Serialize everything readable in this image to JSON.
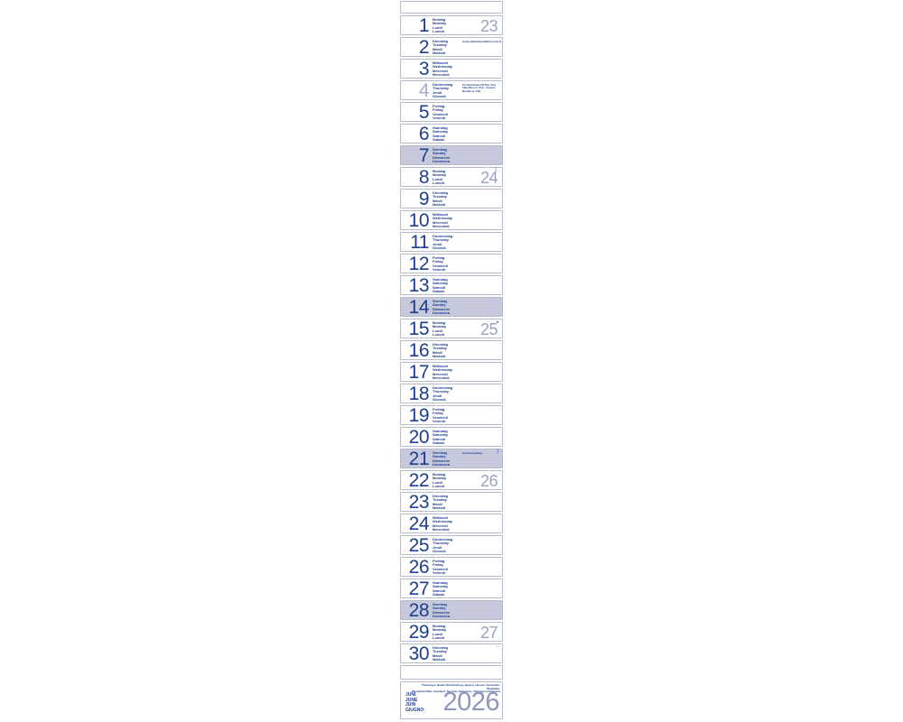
{
  "calendar": {
    "colors": {
      "navy": "#1d3e8e",
      "light_week_number": "#9aa2c4",
      "year_color": "#8e96bb",
      "sunday_background": "#c6c9dc",
      "border": "#b4bbd2",
      "muted_day_number": "#a6adca",
      "background": "#ffffff"
    },
    "weekday_names": {
      "mon": [
        "Montag",
        "Monday",
        "Lundi",
        "Lunedì"
      ],
      "tue": [
        "Dienstag",
        "Tuesday",
        "Mardi",
        "Martedì"
      ],
      "wed": [
        "Mittwoch",
        "Wednesday",
        "Mercredi",
        "Mercoledì"
      ],
      "thu": [
        "Donnerstag",
        "Thursday",
        "Jeudi",
        "Giovedì"
      ],
      "fri": [
        "Freitag",
        "Friday",
        "Vendredi",
        "Venerdì"
      ],
      "sat": [
        "Samstag",
        "Saturday",
        "Samedi",
        "Sabato"
      ],
      "sun": [
        "Sonntag",
        "Sunday",
        "Dimanche",
        "Domenica"
      ]
    },
    "days": [
      {
        "day": "1",
        "weekday": "mon",
        "week": "23"
      },
      {
        "day": "2",
        "weekday": "tue",
        "annotation": [
          "Festa della Repubblica (solo I)"
        ]
      },
      {
        "day": "3",
        "weekday": "wed"
      },
      {
        "day": "4",
        "weekday": "thu",
        "muted": true,
        "annotation": [
          "Fronleichnam (D*/A/t. CH)",
          "Fête-Dieu (t. CH) · Corpus Domini (t. CH)"
        ]
      },
      {
        "day": "5",
        "weekday": "fri"
      },
      {
        "day": "6",
        "weekday": "sat"
      },
      {
        "day": "7",
        "weekday": "sun"
      },
      {
        "day": "8",
        "weekday": "mon",
        "week": "24",
        "moon": {
          "symbol": "☾",
          "name": "last-quarter-moon"
        }
      },
      {
        "day": "9",
        "weekday": "tue"
      },
      {
        "day": "10",
        "weekday": "wed"
      },
      {
        "day": "11",
        "weekday": "thu"
      },
      {
        "day": "12",
        "weekday": "fri"
      },
      {
        "day": "13",
        "weekday": "sat"
      },
      {
        "day": "14",
        "weekday": "sun"
      },
      {
        "day": "15",
        "weekday": "mon",
        "week": "25",
        "moon": {
          "symbol": "●",
          "name": "new-moon"
        }
      },
      {
        "day": "16",
        "weekday": "tue"
      },
      {
        "day": "17",
        "weekday": "wed"
      },
      {
        "day": "18",
        "weekday": "thu"
      },
      {
        "day": "19",
        "weekday": "fri"
      },
      {
        "day": "20",
        "weekday": "sat"
      },
      {
        "day": "21",
        "weekday": "sun",
        "annotation": [
          "Sommeranfang"
        ],
        "moon": {
          "symbol": "☽",
          "name": "first-quarter-moon"
        }
      },
      {
        "day": "22",
        "weekday": "mon",
        "week": "26"
      },
      {
        "day": "23",
        "weekday": "tue"
      },
      {
        "day": "24",
        "weekday": "wed"
      },
      {
        "day": "25",
        "weekday": "thu"
      },
      {
        "day": "26",
        "weekday": "fri"
      },
      {
        "day": "27",
        "weekday": "sat"
      },
      {
        "day": "28",
        "weekday": "sun"
      },
      {
        "day": "29",
        "weekday": "mon",
        "week": "27"
      },
      {
        "day": "30",
        "weekday": "tue",
        "moon": {
          "symbol": "○",
          "name": "full-moon"
        }
      }
    ],
    "footer": {
      "months": [
        "JUNI",
        "JUNE",
        "JUIN",
        "GIUGNO"
      ],
      "year": "2026",
      "footnote_lines": [
        "*Feiertag in Baden-Württemberg, Bayern, Hessen, Nordrhein-Westfalen,",
        "Rheinland-Pfalz, Saarland, Sachsen (teilweise), Thüringen (teilweise)"
      ]
    }
  }
}
